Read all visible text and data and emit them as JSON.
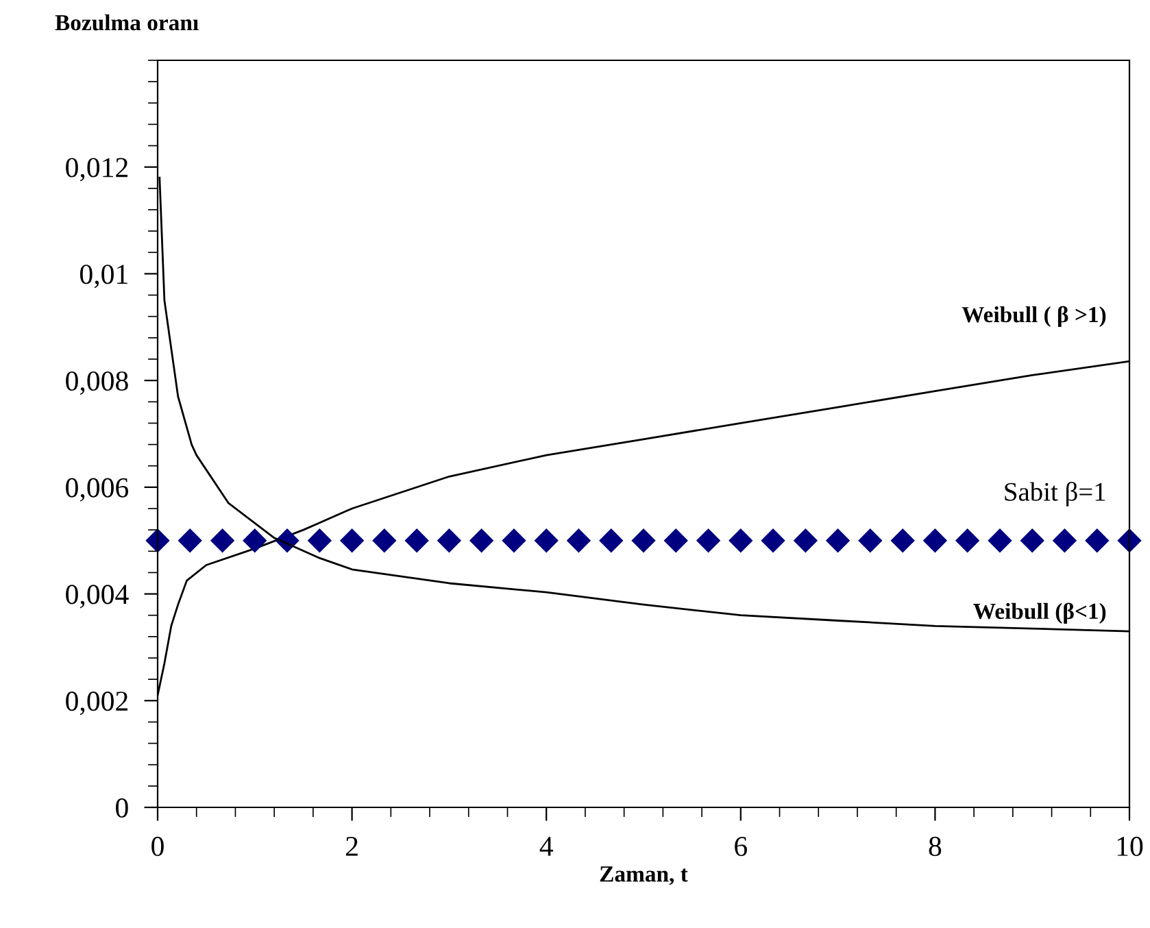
{
  "chart_data": {
    "type": "line",
    "xlabel": "Zaman, t",
    "ylabel": "Bozulma oranı",
    "xlim": [
      0,
      10
    ],
    "ylim": [
      0,
      0.014
    ],
    "xticks": [
      0,
      2,
      4,
      6,
      8,
      10
    ],
    "yticks": [
      0,
      {
        "value": 0.002,
        "label": "0,002"
      },
      {
        "value": 0.004,
        "label": "0,004"
      },
      {
        "value": 0.006,
        "label": "0,006"
      },
      {
        "value": 0.008,
        "label": "0,008"
      },
      {
        "value": 0.01,
        "label": "0,01"
      },
      {
        "value": 0.012,
        "label": "0,012"
      }
    ],
    "grid": false,
    "legend": false,
    "series": [
      {
        "name": "Weibull ( β >1)",
        "color": "#000000",
        "marker": "none",
        "line_style": "solid",
        "x": [
          0,
          0.07,
          0.14,
          0.21,
          0.3,
          0.5,
          1,
          1.5,
          2,
          3,
          4,
          5,
          6,
          7,
          8,
          9,
          10
        ],
        "values": [
          0.0021,
          0.0027,
          0.0034,
          0.0038,
          0.00425,
          0.00454,
          0.00485,
          0.0052,
          0.0056,
          0.0062,
          0.0066,
          0.0069,
          0.0072,
          0.0075,
          0.0078,
          0.0081,
          0.00836
        ]
      },
      {
        "name": "Sabit β=1",
        "type": "scatter",
        "color": "#000080",
        "marker": "diamond",
        "x": [
          0,
          0.333,
          0.667,
          1,
          1.333,
          1.667,
          2,
          2.333,
          2.667,
          3,
          3.333,
          3.667,
          4,
          4.333,
          4.667,
          5,
          5.333,
          5.667,
          6,
          6.333,
          6.667,
          7,
          7.333,
          7.667,
          8,
          8.333,
          8.667,
          9,
          9.333,
          9.667,
          10
        ],
        "values": [
          0.005,
          0.005,
          0.005,
          0.005,
          0.005,
          0.005,
          0.005,
          0.005,
          0.005,
          0.005,
          0.005,
          0.005,
          0.005,
          0.005,
          0.005,
          0.005,
          0.005,
          0.005,
          0.005,
          0.005,
          0.005,
          0.005,
          0.005,
          0.005,
          0.005,
          0.005,
          0.005,
          0.005,
          0.005,
          0.005,
          0.005
        ]
      },
      {
        "name": "Weibull (β<1)",
        "color": "#000000",
        "marker": "none",
        "line_style": "solid",
        "x": [
          0.02,
          0.07,
          0.21,
          0.35,
          0.4,
          0.73,
          1.2,
          1.67,
          2,
          3,
          4,
          5,
          6,
          7,
          8,
          9,
          10
        ],
        "values": [
          0.0118,
          0.0095,
          0.0077,
          0.0068,
          0.0066,
          0.0057,
          0.00505,
          0.00467,
          0.00446,
          0.0042,
          0.00403,
          0.0038,
          0.0036,
          0.0035,
          0.0034,
          0.00335,
          0.0033
        ]
      }
    ]
  }
}
